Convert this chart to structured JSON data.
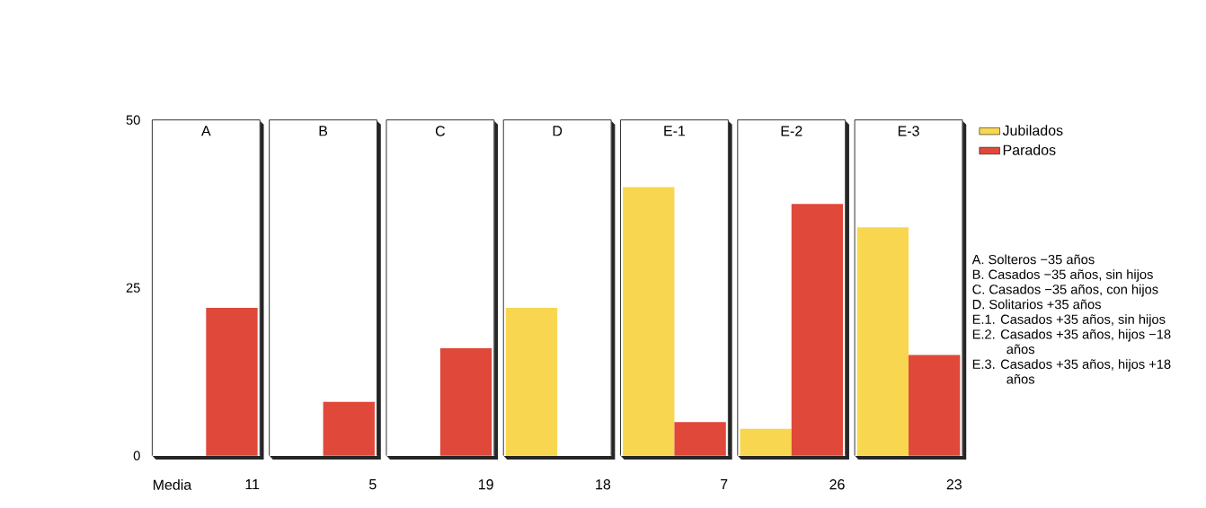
{
  "chart_data": {
    "type": "bar",
    "categories": [
      "A",
      "B",
      "C",
      "D",
      "E-1",
      "E-2",
      "E-3"
    ],
    "series": [
      {
        "name": "Jubilados",
        "color": "#f8d650",
        "values": [
          0,
          0,
          0,
          22,
          40,
          4,
          34
        ]
      },
      {
        "name": "Parados",
        "color": "#e0483a",
        "values": [
          22,
          8,
          16,
          0,
          5,
          37.5,
          15
        ]
      }
    ],
    "ylim": [
      0,
      50
    ],
    "yticks": [
      0,
      25,
      50
    ],
    "legend": "top right",
    "annotations": [
      "Media",
      "11",
      "5",
      "19",
      "18",
      "7",
      "26",
      "23",
      "A. Solteros −35 años",
      "B. Casados −35 años, sin hijos",
      "C. Casados −35 años, con hijos",
      "D. Solitarios +35 años",
      "E.1. Casados +35 años, sin hijos",
      "E.2. Casados +35 años, hijos −18 años",
      "E.3. Casados +35 años, hijos +18 años"
    ]
  }
}
